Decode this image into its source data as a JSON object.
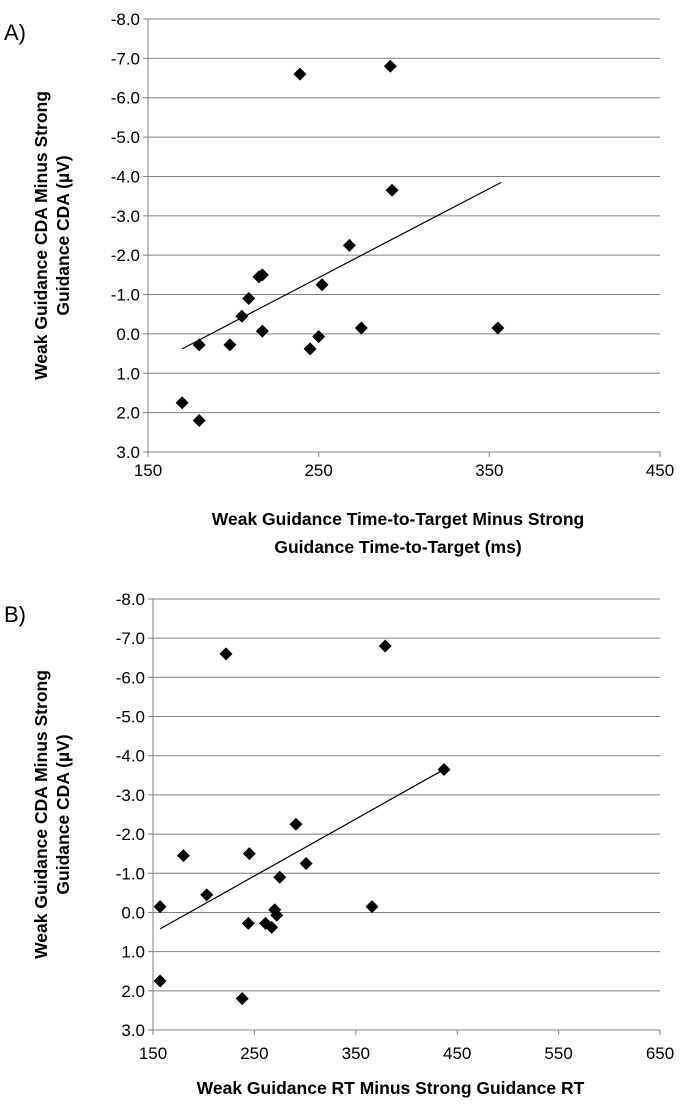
{
  "chart_data": [
    {
      "type": "scatter",
      "panel_label": "A)",
      "xlabel": [
        "Weak Guidance Time-to-Target Minus Strong",
        "Guidance Time-to-Target (ms)"
      ],
      "ylabel": [
        "Weak Guidance CDA Minus Strong",
        "Guidance CDA (µV)"
      ],
      "xlim": [
        150,
        450
      ],
      "ylim": [
        3.0,
        -8.0
      ],
      "y_inverted": true,
      "xticks": [
        "150",
        "250",
        "350",
        "450"
      ],
      "yticks": [
        "-8.0",
        "-7.0",
        "-6.0",
        "-5.0",
        "-4.0",
        "-3.0",
        "-2.0",
        "-1.0",
        "0.0",
        "1.0",
        "2.0",
        "3.0"
      ],
      "grid": "horizontal",
      "marker": "diamond",
      "points": [
        {
          "x": 239,
          "y": -6.6
        },
        {
          "x": 292,
          "y": -6.8
        },
        {
          "x": 293,
          "y": -3.65
        },
        {
          "x": 268,
          "y": -2.25
        },
        {
          "x": 215,
          "y": -1.45
        },
        {
          "x": 217,
          "y": -1.5
        },
        {
          "x": 252,
          "y": -1.25
        },
        {
          "x": 209,
          "y": -0.9
        },
        {
          "x": 205,
          "y": -0.45
        },
        {
          "x": 217,
          "y": -0.07
        },
        {
          "x": 275,
          "y": -0.15
        },
        {
          "x": 355,
          "y": -0.15
        },
        {
          "x": 250,
          "y": 0.07
        },
        {
          "x": 245,
          "y": 0.38
        },
        {
          "x": 198,
          "y": 0.28
        },
        {
          "x": 180,
          "y": 0.28
        },
        {
          "x": 170,
          "y": 1.75
        },
        {
          "x": 180,
          "y": 2.2
        }
      ],
      "trendline": {
        "x": [
          170,
          357
        ],
        "y": [
          0.38,
          -3.85
        ]
      }
    },
    {
      "type": "scatter",
      "panel_label": "B)",
      "xlabel": [
        "Weak Guidance RT Minus Strong Guidance RT"
      ],
      "ylabel": [
        "Weak Guidance CDA Minus Strong",
        "Guidance CDA (µV)"
      ],
      "xlim": [
        150,
        650
      ],
      "ylim": [
        3.0,
        -8.0
      ],
      "y_inverted": true,
      "xticks": [
        "150",
        "250",
        "350",
        "450",
        "550",
        "650"
      ],
      "yticks": [
        "-8.0",
        "-7.0",
        "-6.0",
        "-5.0",
        "-4.0",
        "-3.0",
        "-2.0",
        "-1.0",
        "0.0",
        "1.0",
        "2.0",
        "3.0"
      ],
      "grid": "horizontal",
      "marker": "diamond",
      "points": [
        {
          "x": 222,
          "y": -6.6
        },
        {
          "x": 379,
          "y": -6.8
        },
        {
          "x": 437,
          "y": -3.65
        },
        {
          "x": 291,
          "y": -2.25
        },
        {
          "x": 180,
          "y": -1.45
        },
        {
          "x": 245,
          "y": -1.5
        },
        {
          "x": 301,
          "y": -1.25
        },
        {
          "x": 275,
          "y": -0.9
        },
        {
          "x": 203,
          "y": -0.45
        },
        {
          "x": 157,
          "y": -0.15
        },
        {
          "x": 366,
          "y": -0.15
        },
        {
          "x": 270,
          "y": -0.07
        },
        {
          "x": 272,
          "y": 0.07
        },
        {
          "x": 244,
          "y": 0.28
        },
        {
          "x": 261,
          "y": 0.28
        },
        {
          "x": 267,
          "y": 0.38
        },
        {
          "x": 157,
          "y": 1.75
        },
        {
          "x": 238,
          "y": 2.2
        }
      ],
      "trendline": {
        "x": [
          157,
          437
        ],
        "y": [
          0.42,
          -3.65
        ]
      }
    }
  ]
}
